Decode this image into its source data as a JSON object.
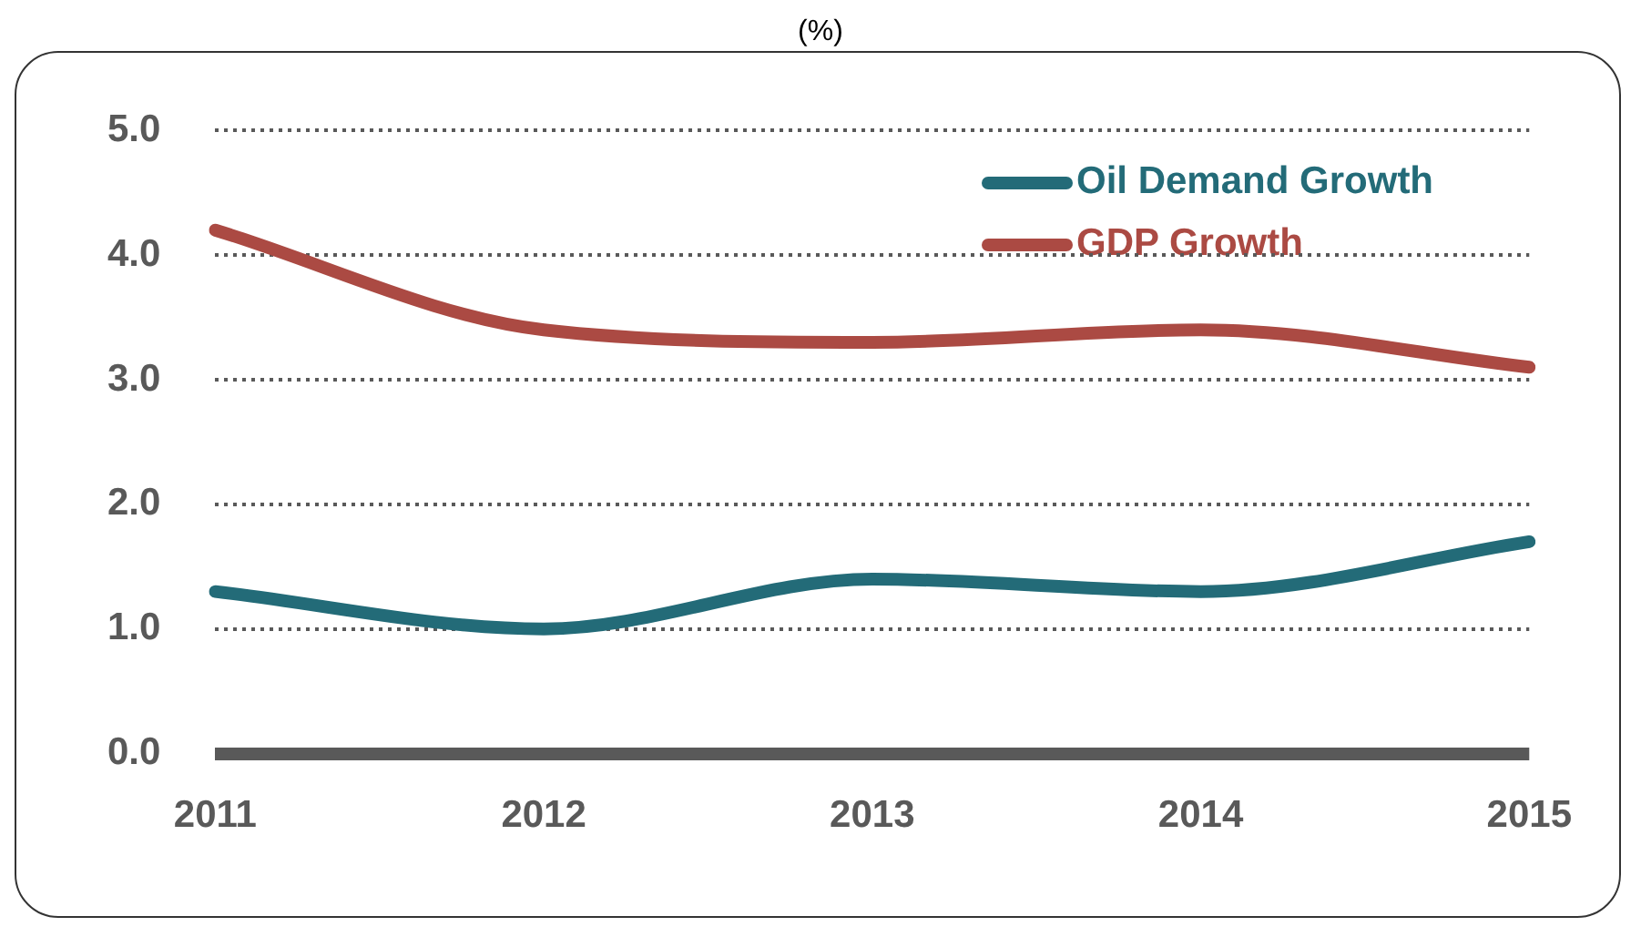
{
  "chart_data": {
    "type": "line",
    "title": "(%)",
    "categories": [
      "2011",
      "2012",
      "2013",
      "2014",
      "2015"
    ],
    "series": [
      {
        "name": "Oil Demand Growth",
        "color": "#236b78",
        "values": [
          1.3,
          1.0,
          1.4,
          1.3,
          1.7
        ]
      },
      {
        "name": "GDP Growth",
        "color": "#ab4a43",
        "values": [
          4.2,
          3.4,
          3.3,
          3.4,
          3.1
        ]
      }
    ],
    "ylim": [
      0,
      5
    ],
    "yticks": [
      {
        "value": 0,
        "label": "0.0"
      },
      {
        "value": 1,
        "label": "1.0"
      },
      {
        "value": 2,
        "label": "2.0"
      },
      {
        "value": 3,
        "label": "3.0"
      },
      {
        "value": 4,
        "label": "4.0"
      },
      {
        "value": 5,
        "label": "5.0"
      }
    ],
    "grid": "y",
    "legend": "top right",
    "marker": "none",
    "line_style": "solid"
  }
}
